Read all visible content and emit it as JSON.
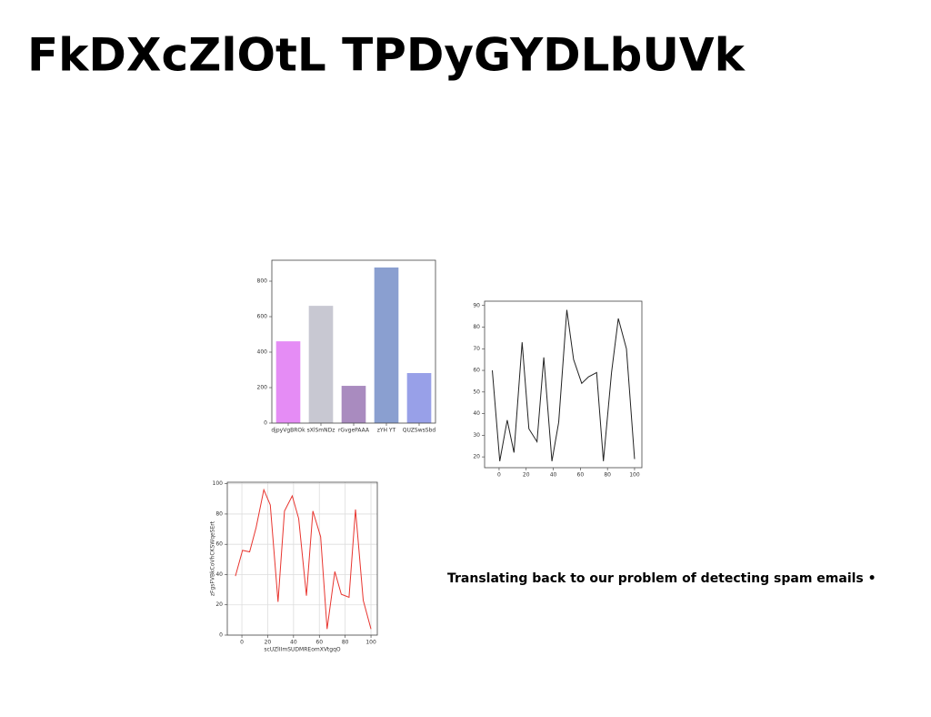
{
  "title": "FkDXcZlOtL TPDyGYDLbUVk",
  "chart_data": [
    {
      "type": "bar",
      "categories": [
        "djpyVgBROk",
        "sXlSmNDz",
        "rGvgePAAA",
        "zYH YT",
        "QUZSwsSbd"
      ],
      "values": [
        461,
        661,
        210,
        877,
        282
      ],
      "colors": [
        "#e58cf5",
        "#c8c8d2",
        "#a98bbf",
        "#8a9fd0",
        "#98a0e8"
      ],
      "ylim": [
        0,
        918
      ],
      "yticks": [
        0,
        200,
        400,
        600,
        800
      ],
      "grid": false
    },
    {
      "type": "line",
      "x": [
        -5,
        0.5,
        6,
        11,
        17,
        22,
        28,
        33,
        39,
        44,
        50,
        55,
        61,
        66,
        72,
        77,
        83,
        88,
        94,
        100
      ],
      "series": [
        {
          "color": "#222222",
          "values": [
            60,
            18,
            37,
            22,
            73,
            33,
            27,
            66,
            18,
            36,
            88,
            65,
            54,
            57,
            59,
            18,
            59,
            84,
            70,
            19
          ]
        }
      ],
      "xlim": [
        -10.7,
        105.4
      ],
      "xticks": [
        0,
        20,
        40,
        60,
        80,
        100
      ],
      "ylim": [
        15,
        92
      ],
      "yticks": [
        20,
        30,
        40,
        50,
        60,
        70,
        80,
        90
      ],
      "grid": false
    },
    {
      "type": "line",
      "x_label": "scUZlIImSUDMREomXVtgqO",
      "y_label": "zFgsFVBkCoVhCKSWqeSErt",
      "x": [
        -5,
        0.5,
        6,
        11,
        17,
        22,
        28,
        33,
        39,
        44,
        50,
        55,
        61,
        66,
        72,
        77,
        83,
        88,
        94,
        100
      ],
      "series": [
        {
          "color": "#e8352f",
          "values": [
            39,
            56,
            55,
            71,
            96,
            86,
            22,
            82,
            92,
            77,
            26,
            82,
            65,
            4,
            42,
            27,
            25,
            83,
            23,
            4
          ]
        }
      ],
      "xlim": [
        -11.3,
        104.9
      ],
      "xticks": [
        0,
        20,
        40,
        60,
        80,
        100
      ],
      "ylim": [
        0,
        101
      ],
      "yticks": [
        0,
        20,
        40,
        60,
        80,
        100
      ],
      "grid": true
    }
  ],
  "body_text": "Translating back to our problem of detecting spam emails •"
}
